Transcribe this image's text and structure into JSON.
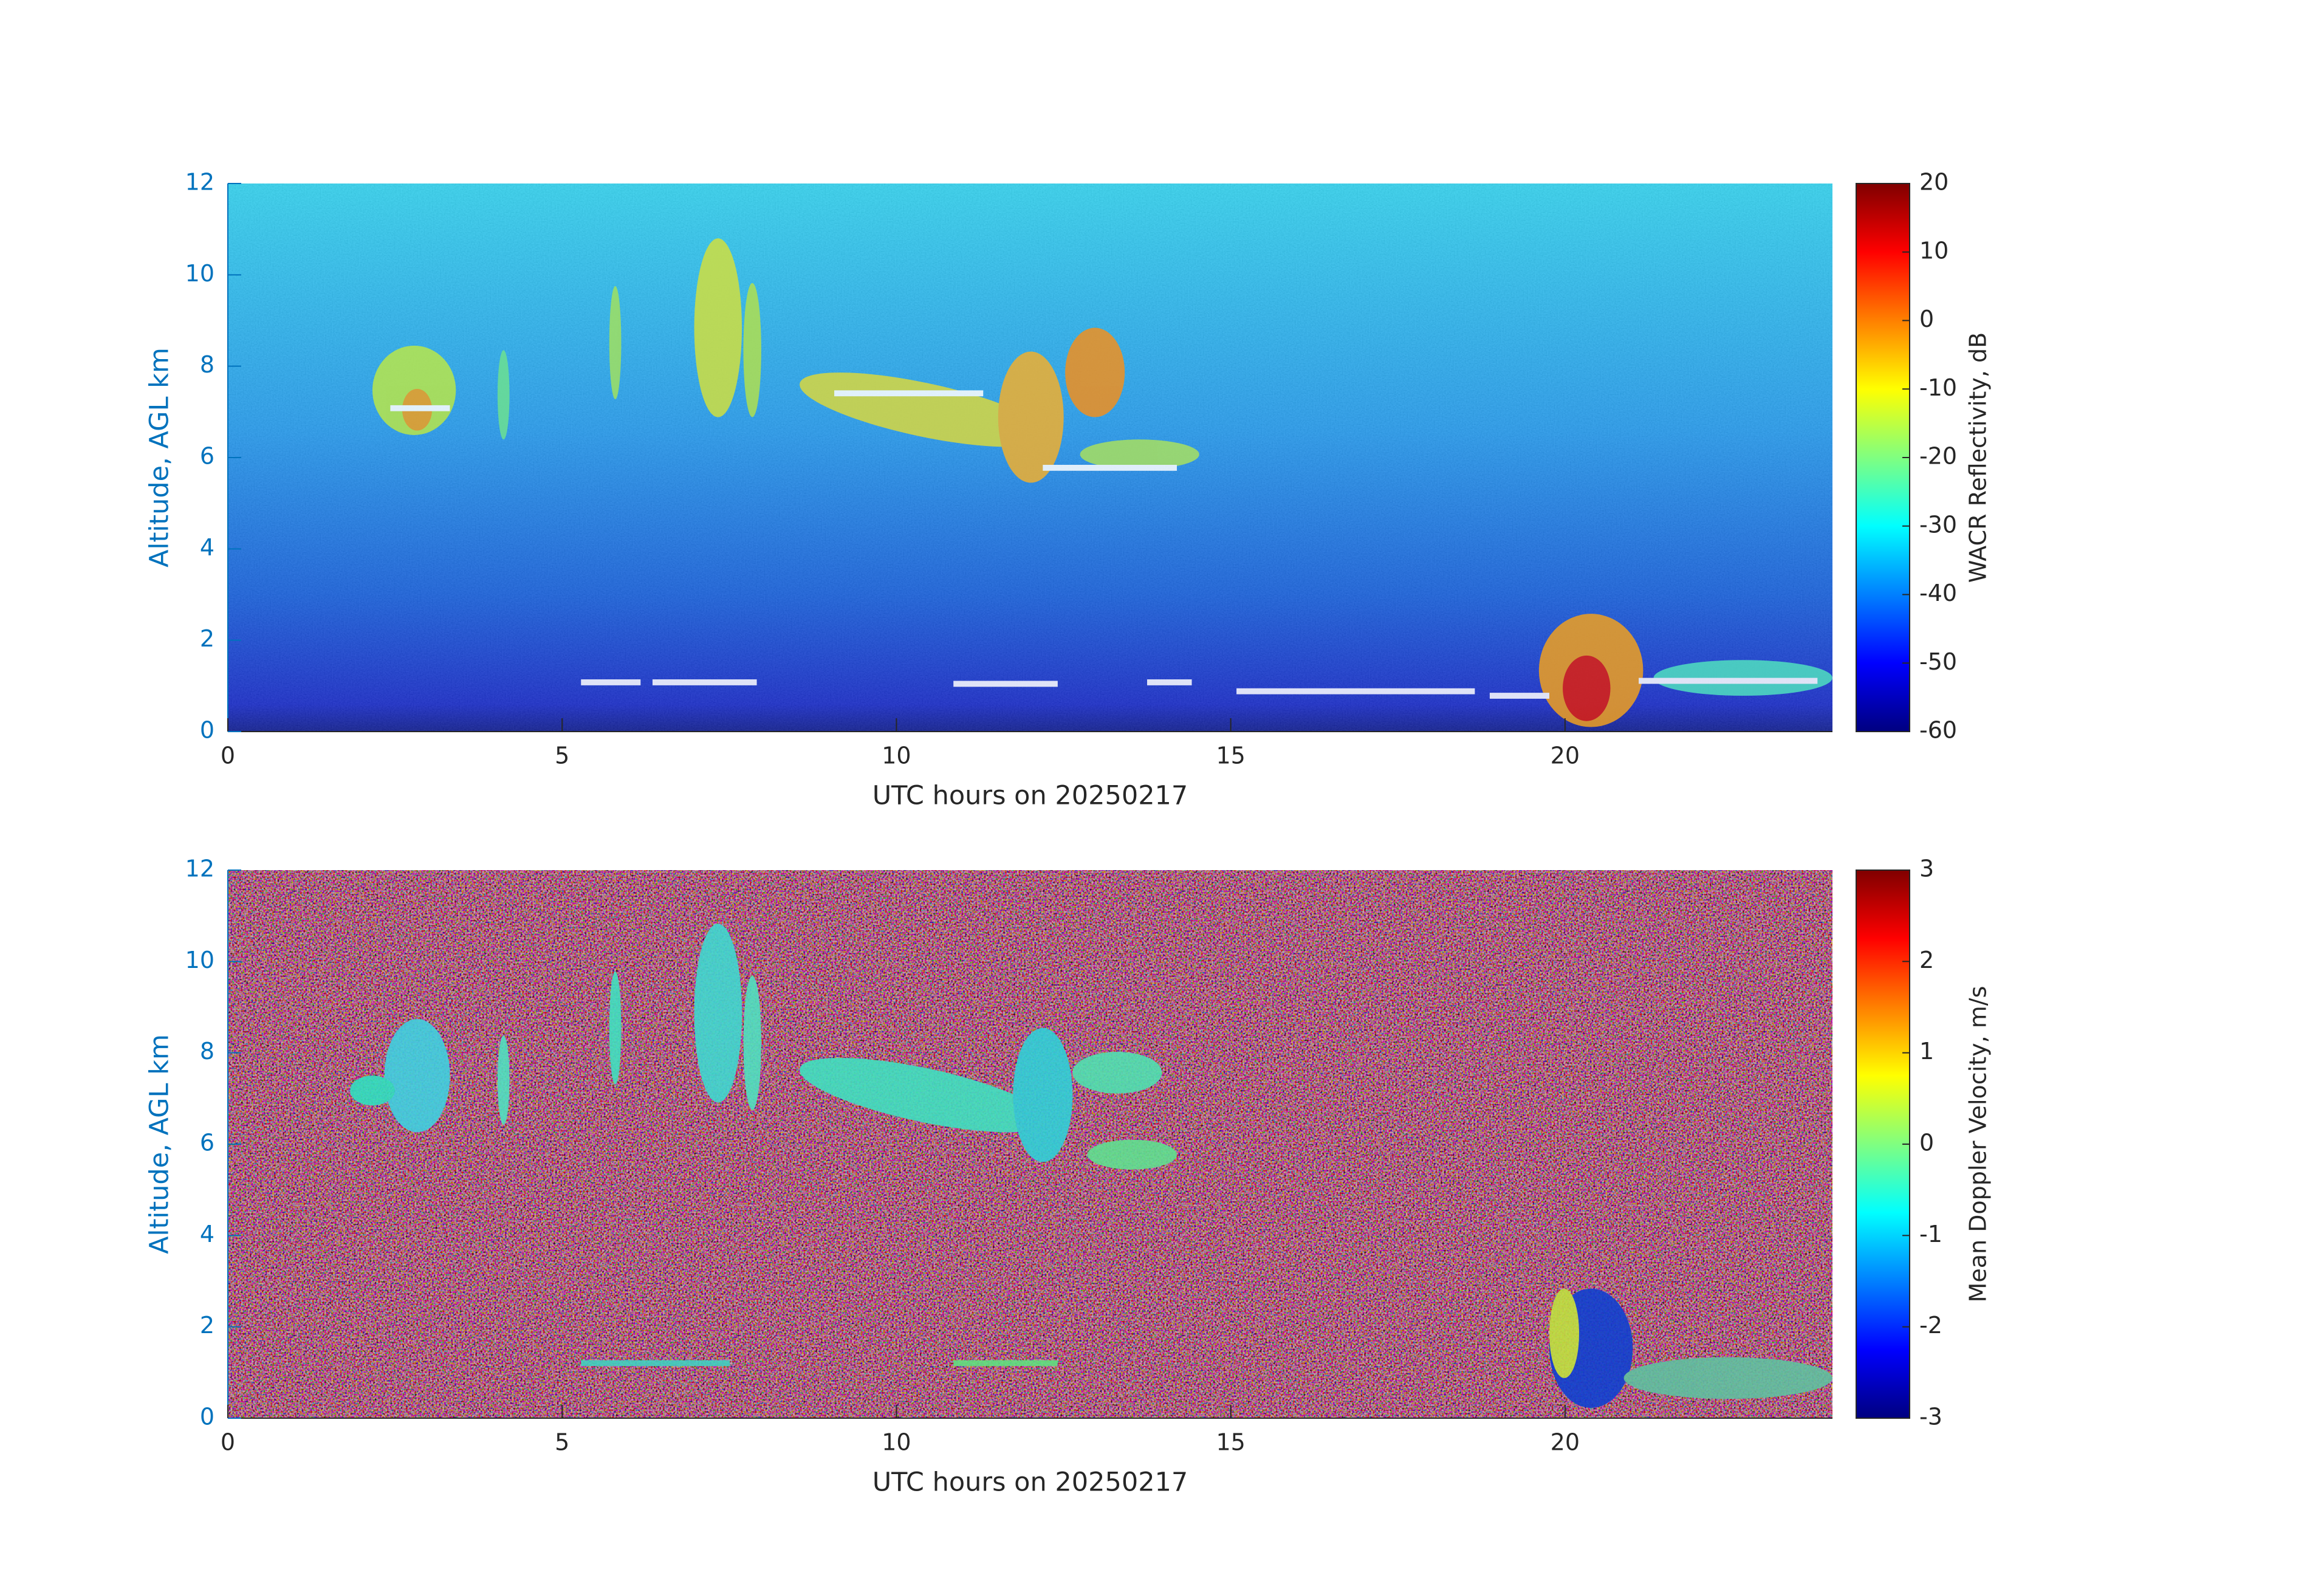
{
  "chart_data": [
    {
      "type": "heatmap",
      "xlabel": "UTC hours on 20250217",
      "ylabel": "Altitude, AGL km",
      "xlim": [
        0,
        24
      ],
      "xticks": [
        0,
        5,
        10,
        15,
        20
      ],
      "ylim": [
        0,
        12
      ],
      "yticks": [
        0,
        2,
        4,
        6,
        8,
        10,
        12
      ],
      "colorbar": {
        "label": "WACR Reflectivity, dB",
        "lim": [
          -60,
          20
        ],
        "ticks": [
          -60,
          -50,
          -40,
          -30,
          -20,
          -10,
          0,
          10,
          20
        ],
        "colormap": "jet"
      }
    },
    {
      "type": "heatmap",
      "xlabel": "UTC hours on 20250217",
      "ylabel": "Altitude, AGL km",
      "xlim": [
        0,
        24
      ],
      "xticks": [
        0,
        5,
        10,
        15,
        20
      ],
      "ylim": [
        0,
        12
      ],
      "yticks": [
        0,
        2,
        4,
        6,
        8,
        10,
        12
      ],
      "colorbar": {
        "label": "Mean Doppler Velocity, m/s",
        "lim": [
          -3,
          3
        ],
        "ticks": [
          -3,
          -2,
          -1,
          0,
          1,
          2,
          3
        ],
        "colormap": "jet"
      }
    }
  ]
}
